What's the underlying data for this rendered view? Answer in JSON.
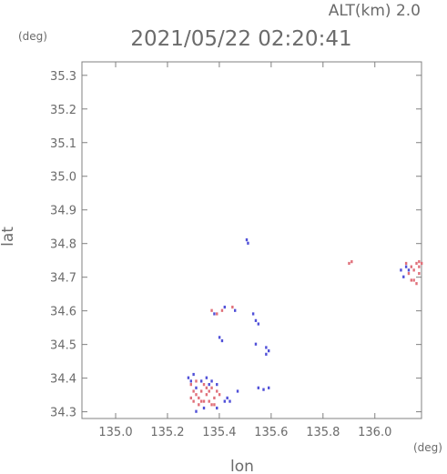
{
  "header": {
    "altitude_label": "ALT(km) 2.0",
    "timestamp": "2021/05/22 02:20:41",
    "y_unit": "(deg)",
    "x_unit": "(deg)"
  },
  "chart_data": {
    "type": "scatter",
    "title": "2021/05/22 02:20:41",
    "subtitle": "ALT(km) 2.0",
    "xlabel": "lon",
    "ylabel": "lat",
    "x_unit": "(deg)",
    "y_unit": "(deg)",
    "xlim": [
      134.87,
      136.18
    ],
    "ylim": [
      34.28,
      35.34
    ],
    "xticks": [
      "135.0",
      "135.2",
      "135.4",
      "135.6",
      "135.8",
      "136.0"
    ],
    "xtick_values": [
      135.0,
      135.2,
      135.4,
      135.6,
      135.8,
      136.0
    ],
    "yticks": [
      "34.3",
      "34.4",
      "34.5",
      "34.6",
      "34.7",
      "34.8",
      "34.9",
      "35.0",
      "35.1",
      "35.2",
      "35.3"
    ],
    "ytick_values": [
      34.3,
      34.4,
      34.5,
      34.6,
      34.7,
      34.8,
      34.9,
      35.0,
      35.1,
      35.2,
      35.3
    ],
    "grid": false,
    "colors": {
      "positive": "#e0707a",
      "negative": "#5050d8"
    },
    "series": [
      {
        "color": "#e0707a",
        "points": [
          [
            135.29,
            34.38
          ],
          [
            135.3,
            34.36
          ],
          [
            135.31,
            34.35
          ],
          [
            135.32,
            34.34
          ],
          [
            135.33,
            34.36
          ],
          [
            135.34,
            34.38
          ],
          [
            135.35,
            34.35
          ],
          [
            135.36,
            34.33
          ],
          [
            135.37,
            34.37
          ],
          [
            135.38,
            34.34
          ],
          [
            135.3,
            34.33
          ],
          [
            135.32,
            34.32
          ],
          [
            135.34,
            34.33
          ],
          [
            135.36,
            34.36
          ],
          [
            135.38,
            34.32
          ],
          [
            135.4,
            34.35
          ],
          [
            135.31,
            34.39
          ],
          [
            135.33,
            34.33
          ],
          [
            135.35,
            34.37
          ],
          [
            135.39,
            34.36
          ],
          [
            135.37,
            34.32
          ],
          [
            135.29,
            34.34
          ],
          [
            135.37,
            34.6
          ],
          [
            135.39,
            34.59
          ],
          [
            135.41,
            34.6
          ],
          [
            135.45,
            34.61
          ],
          [
            135.91,
            34.745
          ],
          [
            135.9,
            34.74
          ],
          [
            136.12,
            34.74
          ],
          [
            136.14,
            34.73
          ],
          [
            136.15,
            34.72
          ],
          [
            136.16,
            34.74
          ],
          [
            136.17,
            34.73
          ],
          [
            136.13,
            34.71
          ],
          [
            136.15,
            34.69
          ],
          [
            136.17,
            34.71
          ],
          [
            136.16,
            34.68
          ],
          [
            136.14,
            34.69
          ],
          [
            136.18,
            34.74
          ],
          [
            136.17,
            34.745
          ]
        ]
      },
      {
        "color": "#5050d8",
        "points": [
          [
            135.28,
            34.4
          ],
          [
            135.29,
            34.39
          ],
          [
            135.3,
            34.41
          ],
          [
            135.31,
            34.37
          ],
          [
            135.33,
            34.39
          ],
          [
            135.35,
            34.4
          ],
          [
            135.36,
            34.38
          ],
          [
            135.37,
            34.39
          ],
          [
            135.39,
            34.38
          ],
          [
            135.42,
            34.33
          ],
          [
            135.43,
            34.34
          ],
          [
            135.44,
            34.33
          ],
          [
            135.34,
            34.31
          ],
          [
            135.39,
            34.31
          ],
          [
            135.31,
            34.3
          ],
          [
            135.505,
            34.81
          ],
          [
            135.51,
            34.8
          ],
          [
            135.38,
            34.59
          ],
          [
            135.42,
            34.61
          ],
          [
            135.46,
            34.6
          ],
          [
            135.53,
            34.59
          ],
          [
            135.54,
            34.57
          ],
          [
            135.55,
            34.56
          ],
          [
            135.4,
            34.52
          ],
          [
            135.41,
            34.51
          ],
          [
            135.54,
            34.5
          ],
          [
            135.58,
            34.49
          ],
          [
            135.59,
            34.48
          ],
          [
            135.58,
            34.47
          ],
          [
            135.55,
            34.37
          ],
          [
            135.57,
            34.365
          ],
          [
            135.59,
            34.37
          ],
          [
            135.47,
            34.36
          ],
          [
            136.1,
            34.72
          ],
          [
            136.12,
            34.73
          ],
          [
            136.11,
            34.7
          ],
          [
            136.13,
            34.72
          ]
        ]
      }
    ]
  }
}
